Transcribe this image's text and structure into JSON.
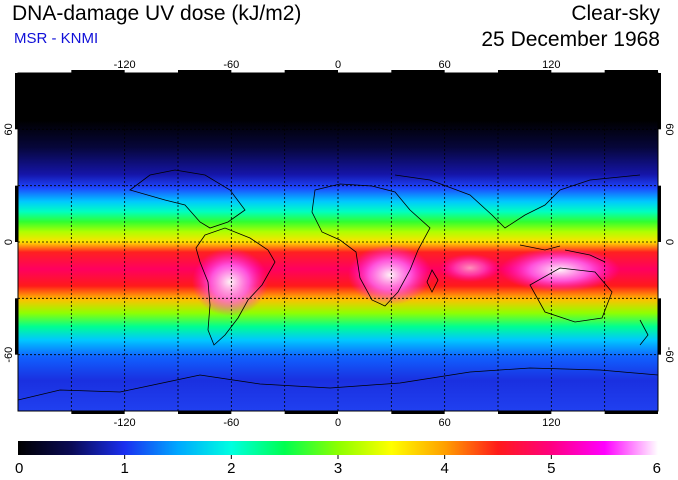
{
  "header": {
    "title": "DNA-damage UV dose (kJ/m2)",
    "subtitle": "MSR - KNMI",
    "sky": "Clear-sky",
    "date": "25 December 1968"
  },
  "map": {
    "lon_ticks": [
      "-120",
      "-60",
      "0",
      "60",
      "120"
    ],
    "lat_ticks": [
      "60",
      "0",
      "-60"
    ],
    "lon_values": [
      -120,
      -60,
      0,
      60,
      120
    ],
    "lat_values": [
      60,
      0,
      -60
    ],
    "lon_range": [
      -180,
      180
    ],
    "lat_range": [
      -90,
      90
    ],
    "grid": true
  },
  "colorbar": {
    "labels": [
      "0",
      "1",
      "2",
      "3",
      "4",
      "5",
      "6"
    ],
    "range": [
      0,
      6
    ],
    "colors": [
      "#000000",
      "#0a0a55",
      "#1a2ff0",
      "#00a8ff",
      "#00ffe0",
      "#00ff50",
      "#8cff00",
      "#ffff00",
      "#ffa000",
      "#ff1a1a",
      "#ff0080",
      "#ff00ff",
      "#ffffff"
    ]
  }
}
